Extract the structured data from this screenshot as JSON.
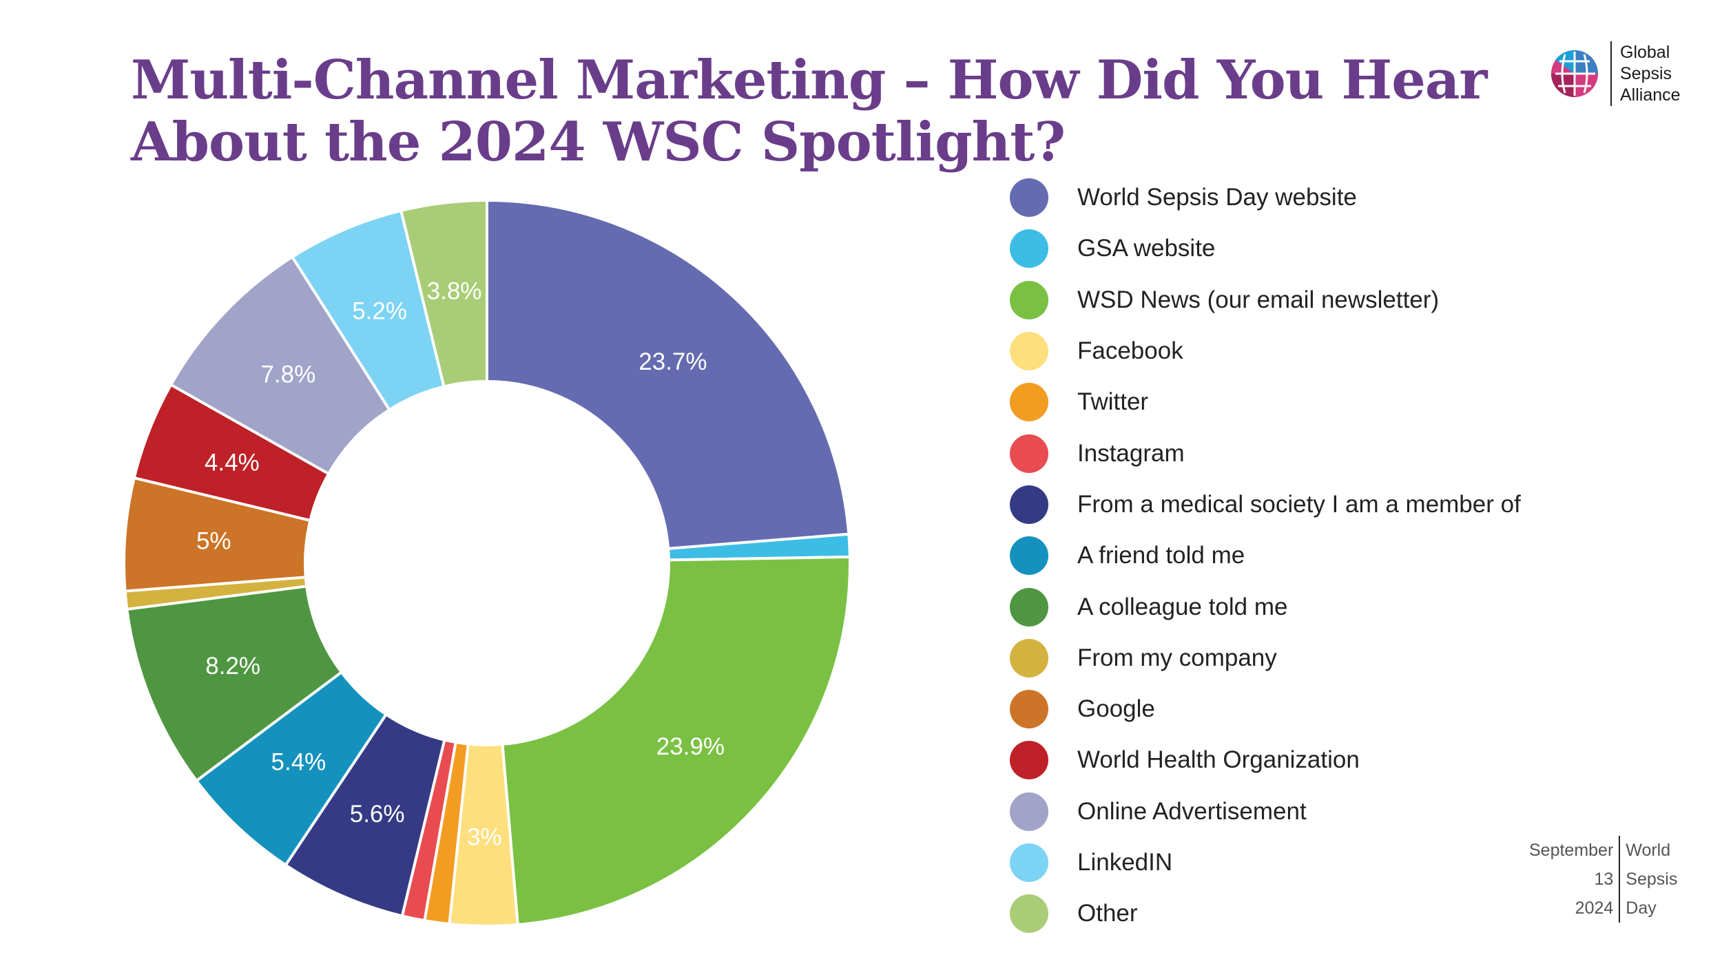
{
  "title": "Multi-Channel Marketing – How Did You Hear About the 2024 WSC Spotlight?",
  "logo": {
    "lines": [
      "Global",
      "Sepsis",
      "Alliance"
    ]
  },
  "badge": {
    "left": [
      "September",
      "13",
      "2024"
    ],
    "right": [
      "World",
      "Sepsis",
      "Day"
    ]
  },
  "chart_data": {
    "type": "donut",
    "title": "Multi-Channel Marketing – How Did You Hear About the 2024 WSC Spotlight?",
    "legend_position": "right",
    "unit": "%",
    "categories": [
      "World Sepsis Day website",
      "GSA website",
      "WSD News (our email newsletter)",
      "Facebook",
      "Twitter",
      "Instagram",
      "From a medical society I am a member of",
      "A friend told me",
      "A colleague told me",
      "From my company",
      "Google",
      "World Health Organization",
      "Online Advertisement",
      "LinkedIN",
      "Other"
    ],
    "values": [
      23.7,
      1.0,
      23.9,
      3.0,
      1.1,
      1.0,
      5.6,
      5.4,
      8.2,
      0.8,
      5.0,
      4.4,
      7.8,
      5.2,
      3.8
    ],
    "labels": [
      "23.7%",
      "",
      "23.9%",
      "3%",
      "",
      "",
      "5.6%",
      "5.4%",
      "8.2%",
      "",
      "5%",
      "4.4%",
      "7.8%",
      "5.2%",
      "3.8%"
    ],
    "colors": [
      "#656bb0",
      "#3cbde5",
      "#7ac143",
      "#fddf7d",
      "#f39c22",
      "#e84b50",
      "#343b84",
      "#1492bd",
      "#4f9642",
      "#d4b23f",
      "#cc7427",
      "#be2127",
      "#a1a3c9",
      "#7cd3f4",
      "#a9cd77"
    ]
  }
}
